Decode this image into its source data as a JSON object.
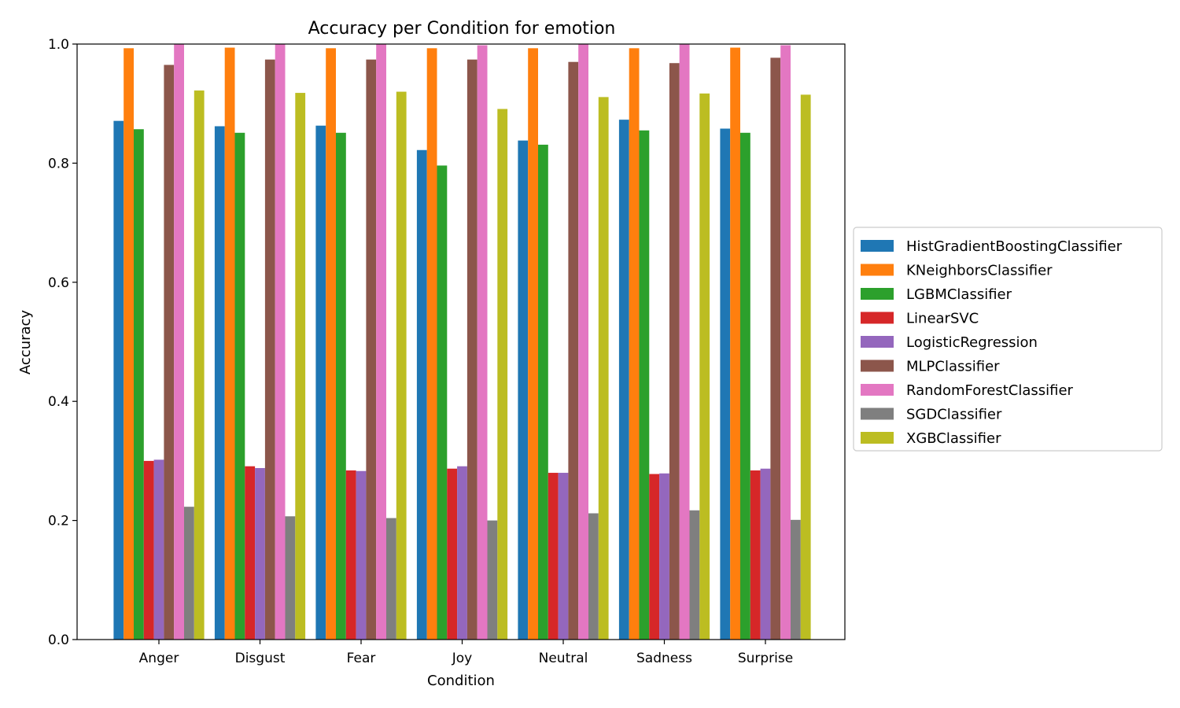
{
  "chart_data": {
    "type": "bar",
    "title": "Accuracy per Condition for emotion",
    "xlabel": "Condition",
    "ylabel": "Accuracy",
    "ylim": [
      0,
      1.0
    ],
    "yticks": [
      "0.0",
      "0.2",
      "0.4",
      "0.6",
      "0.8",
      "1.0"
    ],
    "categories": [
      "Anger",
      "Disgust",
      "Fear",
      "Joy",
      "Neutral",
      "Sadness",
      "Surprise"
    ],
    "grid": false,
    "legend_position": "center-right outside",
    "series": [
      {
        "name": "HistGradientBoostingClassifier",
        "color": "#1f77b4",
        "values": [
          0.871,
          0.862,
          0.863,
          0.822,
          0.838,
          0.873,
          0.858
        ]
      },
      {
        "name": "KNeighborsClassifier",
        "color": "#ff7f0e",
        "values": [
          0.993,
          0.994,
          0.993,
          0.993,
          0.993,
          0.993,
          0.994
        ]
      },
      {
        "name": "LGBMClassifier",
        "color": "#2ca02c",
        "values": [
          0.857,
          0.851,
          0.851,
          0.796,
          0.831,
          0.855,
          0.851
        ]
      },
      {
        "name": "LinearSVC",
        "color": "#d62728",
        "values": [
          0.3,
          0.291,
          0.284,
          0.287,
          0.28,
          0.278,
          0.284
        ]
      },
      {
        "name": "LogisticRegression",
        "color": "#9467bd",
        "values": [
          0.302,
          0.288,
          0.283,
          0.291,
          0.28,
          0.279,
          0.287
        ]
      },
      {
        "name": "MLPClassifier",
        "color": "#8c564b",
        "values": [
          0.965,
          0.974,
          0.974,
          0.974,
          0.97,
          0.968,
          0.977
        ]
      },
      {
        "name": "RandomForestClassifier",
        "color": "#e377c2",
        "values": [
          1.0,
          1.0,
          1.0,
          0.998,
          1.0,
          1.0,
          0.998
        ]
      },
      {
        "name": "SGDClassifier",
        "color": "#7f7f7f",
        "values": [
          0.223,
          0.207,
          0.204,
          0.2,
          0.212,
          0.217,
          0.201
        ]
      },
      {
        "name": "XGBClassifier",
        "color": "#bcbd22",
        "values": [
          0.922,
          0.918,
          0.92,
          0.891,
          0.911,
          0.917,
          0.915
        ]
      }
    ]
  }
}
